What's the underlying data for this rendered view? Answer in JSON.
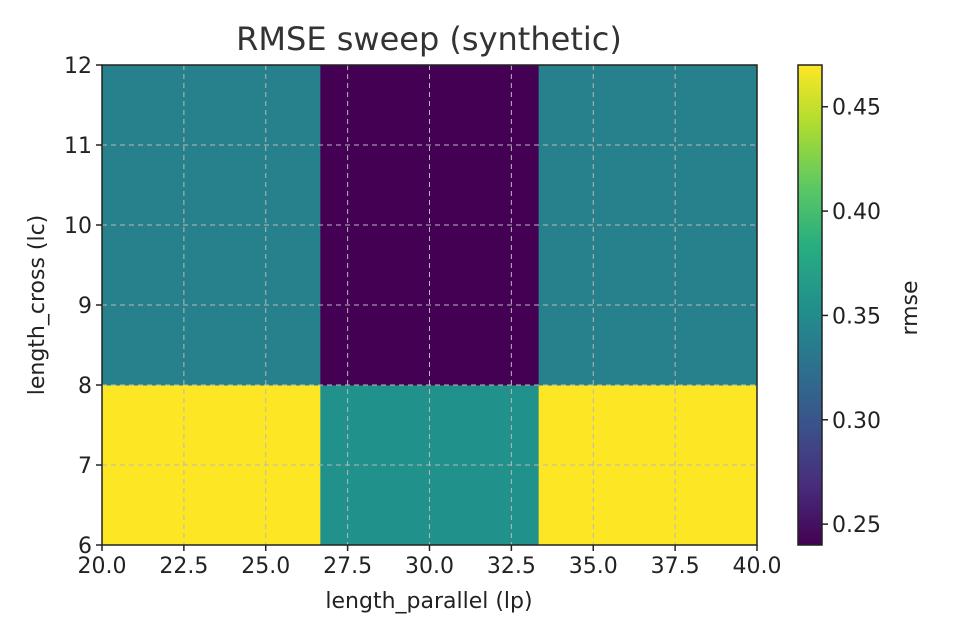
{
  "chart_data": {
    "type": "heatmap",
    "title": "RMSE sweep (synthetic)",
    "xlabel": "length_parallel (lp)",
    "ylabel": "length_cross (lc)",
    "xlim": [
      20.0,
      40.0
    ],
    "ylim": [
      6,
      12
    ],
    "x_edges": [
      20.0,
      26.667,
      33.333,
      40.0
    ],
    "y_edges": [
      6,
      8,
      12
    ],
    "x_ticks": [
      20.0,
      22.5,
      25.0,
      27.5,
      30.0,
      32.5,
      35.0,
      37.5,
      40.0
    ],
    "x_tick_labels": [
      "20.0",
      "22.5",
      "25.0",
      "27.5",
      "30.0",
      "32.5",
      "35.0",
      "37.5",
      "40.0"
    ],
    "y_ticks": [
      6,
      7,
      8,
      9,
      10,
      11,
      12
    ],
    "y_tick_labels": [
      "6",
      "7",
      "8",
      "9",
      "10",
      "11",
      "12"
    ],
    "grid": true,
    "values": [
      [
        0.47,
        0.355,
        0.47
      ],
      [
        0.34,
        0.24,
        0.34
      ]
    ],
    "colorbar": {
      "label": "rmse",
      "min": 0.24,
      "max": 0.47,
      "ticks": [
        0.25,
        0.3,
        0.35,
        0.4,
        0.45
      ],
      "tick_labels": [
        "0.25",
        "0.30",
        "0.35",
        "0.40",
        "0.45"
      ],
      "colormap": "viridis"
    }
  }
}
